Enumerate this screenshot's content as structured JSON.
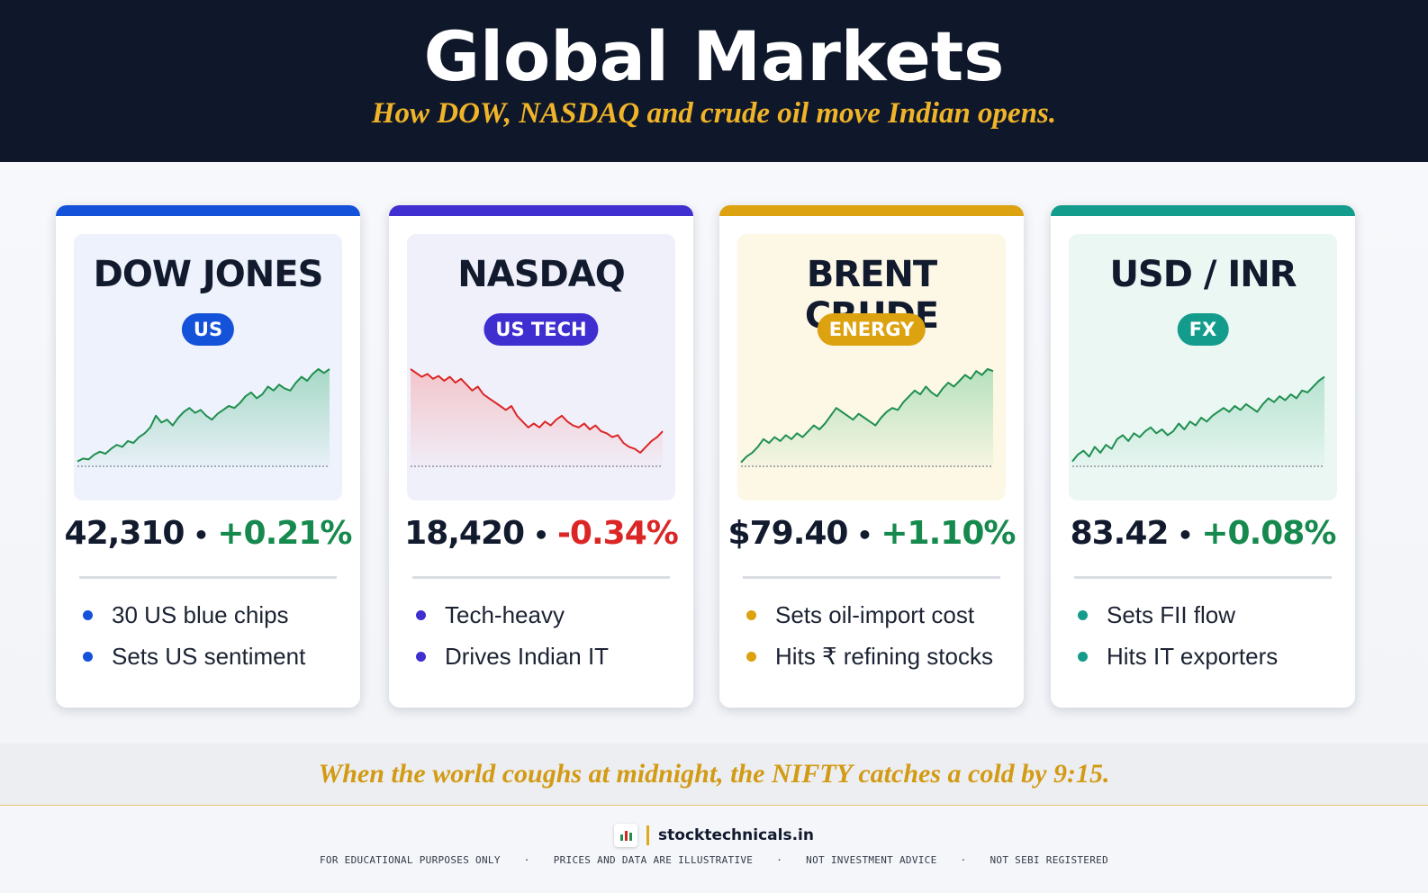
{
  "header": {
    "title": "Global Markets",
    "subtitle": "How DOW, NASDAQ and crude oil move Indian opens."
  },
  "cards": [
    {
      "name": "DOW JONES",
      "badge": "US",
      "value": "42,310",
      "change": "+0.21%",
      "accent": "#1452d9",
      "panel_bg": "#eef2fc",
      "change_color": "#168a4e",
      "trend_color": "#1f8f4f",
      "fill_color": "#6cc49a",
      "bullets": [
        "30 US blue chips",
        "Sets US sentiment"
      ],
      "trend": [
        0.05,
        0.08,
        0.07,
        0.12,
        0.15,
        0.13,
        0.18,
        0.22,
        0.2,
        0.26,
        0.24,
        0.3,
        0.34,
        0.4,
        0.52,
        0.45,
        0.48,
        0.42,
        0.5,
        0.56,
        0.6,
        0.55,
        0.58,
        0.52,
        0.48,
        0.54,
        0.58,
        0.62,
        0.6,
        0.65,
        0.72,
        0.76,
        0.7,
        0.74,
        0.82,
        0.78,
        0.84,
        0.8,
        0.78,
        0.86,
        0.92,
        0.88,
        0.95,
        1.0,
        0.96,
        1.0
      ]
    },
    {
      "name": "NASDAQ",
      "badge": "US TECH",
      "value": "18,420",
      "change": "-0.34%",
      "accent": "#3f2fd0",
      "panel_bg": "#f0f0fb",
      "change_color": "#dc2626",
      "trend_color": "#dc2626",
      "fill_color": "#f5a3a3",
      "bullets": [
        "Tech-heavy",
        "Drives Indian IT"
      ],
      "trend": [
        1.0,
        0.96,
        0.92,
        0.95,
        0.9,
        0.93,
        0.88,
        0.92,
        0.86,
        0.9,
        0.84,
        0.78,
        0.82,
        0.74,
        0.7,
        0.66,
        0.62,
        0.58,
        0.62,
        0.52,
        0.46,
        0.4,
        0.44,
        0.4,
        0.46,
        0.42,
        0.48,
        0.52,
        0.46,
        0.42,
        0.4,
        0.44,
        0.38,
        0.42,
        0.36,
        0.34,
        0.3,
        0.32,
        0.24,
        0.2,
        0.18,
        0.14,
        0.2,
        0.26,
        0.3,
        0.36
      ]
    },
    {
      "name": "BRENT CRUDE",
      "badge": "ENERGY",
      "value": "$79.40",
      "change": "+1.10%",
      "accent": "#dca20f",
      "panel_bg": "#fdf7e6",
      "change_color": "#168a4e",
      "trend_color": "#1f8f4f",
      "fill_color": "#7ccf9e",
      "bullets": [
        "Sets oil-import cost",
        "Hits ₹ refining stocks"
      ],
      "trend": [
        0.04,
        0.1,
        0.14,
        0.2,
        0.28,
        0.24,
        0.3,
        0.26,
        0.32,
        0.28,
        0.34,
        0.3,
        0.36,
        0.42,
        0.38,
        0.44,
        0.52,
        0.6,
        0.56,
        0.52,
        0.48,
        0.54,
        0.5,
        0.46,
        0.42,
        0.5,
        0.56,
        0.6,
        0.58,
        0.66,
        0.72,
        0.78,
        0.74,
        0.82,
        0.76,
        0.72,
        0.8,
        0.86,
        0.82,
        0.88,
        0.94,
        0.9,
        0.98,
        0.94,
        1.0,
        0.98
      ]
    },
    {
      "name": "USD / INR",
      "badge": "FX",
      "value": "83.42",
      "change": "+0.08%",
      "accent": "#139c8c",
      "panel_bg": "#eaf7f3",
      "change_color": "#168a4e",
      "trend_color": "#1f8f4f",
      "fill_color": "#8fd3b4",
      "bullets": [
        "Sets FII flow",
        "Hits IT exporters"
      ],
      "trend": [
        0.05,
        0.12,
        0.16,
        0.1,
        0.2,
        0.14,
        0.22,
        0.18,
        0.28,
        0.32,
        0.26,
        0.34,
        0.3,
        0.36,
        0.4,
        0.34,
        0.38,
        0.32,
        0.36,
        0.44,
        0.38,
        0.46,
        0.42,
        0.5,
        0.46,
        0.52,
        0.56,
        0.6,
        0.56,
        0.62,
        0.58,
        0.64,
        0.6,
        0.56,
        0.64,
        0.7,
        0.66,
        0.72,
        0.68,
        0.74,
        0.7,
        0.78,
        0.76,
        0.82,
        0.88,
        0.92
      ]
    }
  ],
  "quote": "When the world coughs at midnight, the NIFTY catches a cold by 9:15.",
  "footer": {
    "brand": "stocktechnicals.in",
    "disclaimers": [
      "FOR EDUCATIONAL PURPOSES ONLY",
      "PRICES AND DATA ARE ILLUSTRATIVE",
      "NOT INVESTMENT ADVICE",
      "NOT SEBI REGISTERED"
    ],
    "separator": "·"
  }
}
